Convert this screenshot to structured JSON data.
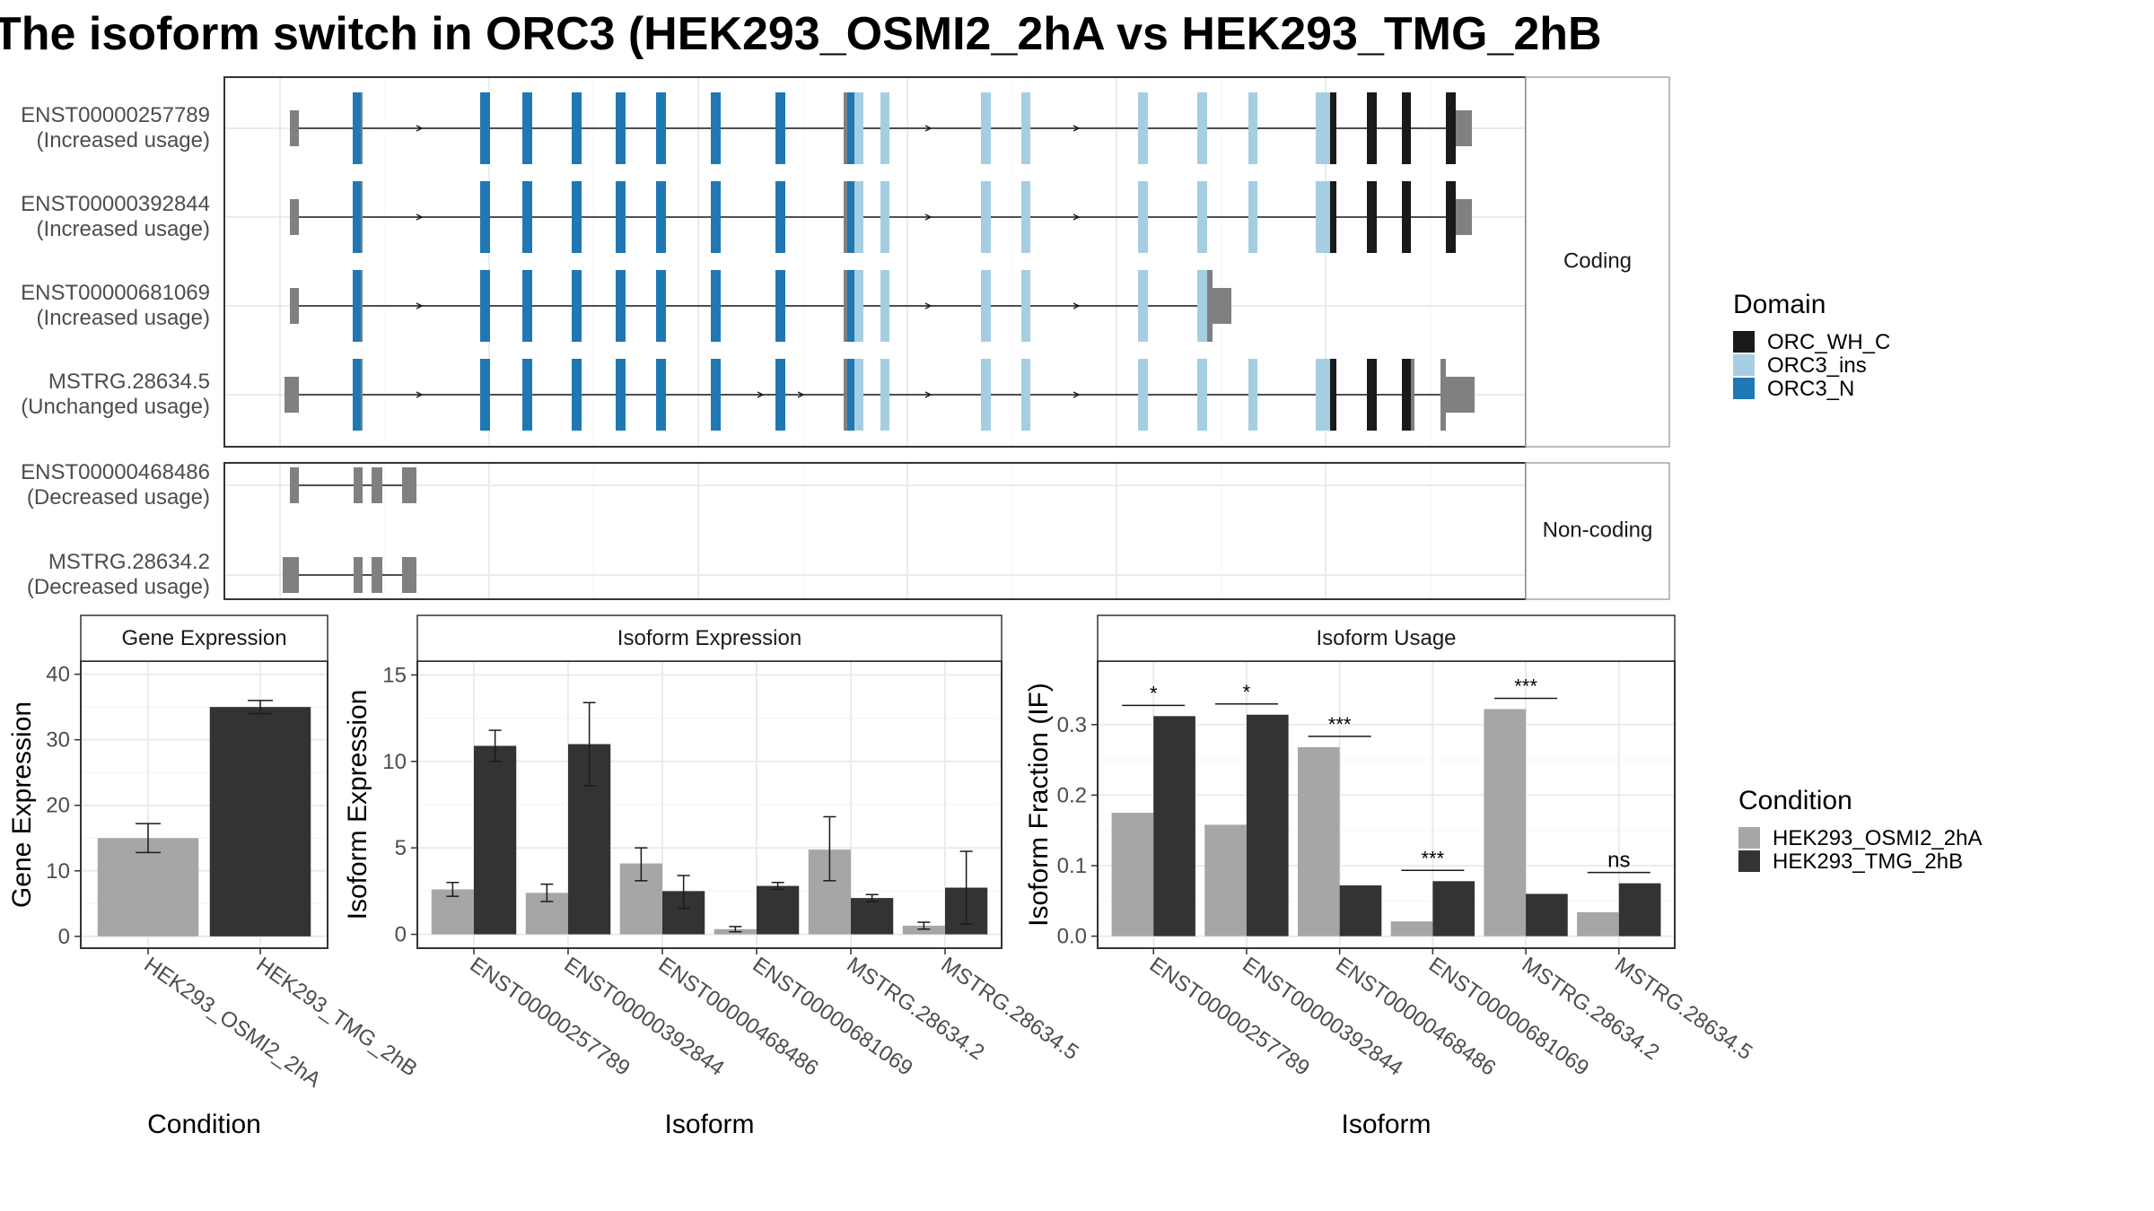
{
  "title": "The isoform switch in ORC3 (HEK293_OSMI2_2hA vs HEK293_TMG_2hB",
  "colors": {
    "orc_wh_c": "#1a1a1a",
    "orc3_ins": "#a6cee3",
    "orc3_n": "#1f78b4",
    "noncoding_exon": "#808080",
    "condition_a": "#a6a6a6",
    "condition_b": "#333333",
    "panel_border": "#333333",
    "grid": "#ebebeb",
    "strip_border": "#a6a6a6"
  },
  "structure": {
    "panels": [
      {
        "label": "Coding",
        "transcripts": [
          {
            "id": "ENST00000257789",
            "status": "(Increased usage)"
          },
          {
            "id": "ENST00000392844",
            "status": "(Increased usage)"
          },
          {
            "id": "ENST00000681069",
            "status": "(Increased usage)"
          },
          {
            "id": "MSTRG.28634.5",
            "status": "(Unchanged usage)"
          }
        ]
      },
      {
        "label": "Non-coding",
        "transcripts": [
          {
            "id": "ENST00000468486",
            "status": "(Decreased usage)"
          },
          {
            "id": "MSTRG.28634.2",
            "status": "(Decreased usage)"
          }
        ]
      }
    ],
    "domain_legend": {
      "title": "Domain",
      "items": [
        {
          "label": "ORC_WH_C",
          "color": "#1a1a1a"
        },
        {
          "label": "ORC3_ins",
          "color": "#a6cee3"
        },
        {
          "label": "ORC3_N",
          "color": "#1f78b4"
        }
      ]
    }
  },
  "condition_legend": {
    "title": "Condition",
    "items": [
      {
        "label": "HEK293_OSMI2_2hA",
        "color": "#a6a6a6"
      },
      {
        "label": "HEK293_TMG_2hB",
        "color": "#333333"
      }
    ]
  },
  "chart_data": [
    {
      "type": "bar",
      "title": "Gene Expression",
      "xlabel": "Condition",
      "ylabel": "Gene Expression",
      "categories": [
        "HEK293_OSMI2_2hA",
        "HEK293_TMG_2hB"
      ],
      "values": [
        15.0,
        35.0
      ],
      "error": [
        [
          12.8,
          17.2
        ],
        [
          34.0,
          36.0
        ]
      ],
      "ylim": [
        -1.8,
        42
      ],
      "yticks": [
        0,
        10,
        20,
        30,
        40
      ]
    },
    {
      "type": "bar",
      "title": "Isoform Expression",
      "xlabel": "Isoform",
      "ylabel": "Isoform Expression",
      "categories": [
        "ENST00000257789",
        "ENST00000392844",
        "ENST00000468486",
        "ENST00000681069",
        "MSTRG.28634.2",
        "MSTRG.28634.5"
      ],
      "series": [
        {
          "name": "HEK293_OSMI2_2hA",
          "values": [
            2.6,
            2.4,
            4.1,
            0.3,
            4.9,
            0.5
          ],
          "error": [
            [
              2.2,
              3.0
            ],
            [
              1.9,
              2.9
            ],
            [
              3.1,
              5.0
            ],
            [
              0.15,
              0.45
            ],
            [
              3.1,
              6.8
            ],
            [
              0.3,
              0.7
            ]
          ]
        },
        {
          "name": "HEK293_TMG_2hB",
          "values": [
            10.9,
            11.0,
            2.5,
            2.8,
            2.1,
            2.7
          ],
          "error": [
            [
              10.0,
              11.8
            ],
            [
              8.6,
              13.4
            ],
            [
              1.5,
              3.4
            ],
            [
              2.6,
              3.0
            ],
            [
              1.9,
              2.3
            ],
            [
              0.6,
              4.8
            ]
          ]
        }
      ],
      "ylim": [
        -0.8,
        15.8
      ],
      "yticks": [
        0,
        5,
        10,
        15
      ]
    },
    {
      "type": "bar",
      "title": "Isoform Usage",
      "xlabel": "Isoform",
      "ylabel": "Isoform Fraction (IF)",
      "categories": [
        "ENST00000257789",
        "ENST00000392844",
        "ENST00000468486",
        "ENST00000681069",
        "MSTRG.28634.2",
        "MSTRG.28634.5"
      ],
      "series": [
        {
          "name": "HEK293_OSMI2_2hA",
          "values": [
            0.175,
            0.158,
            0.268,
            0.021,
            0.322,
            0.034
          ]
        },
        {
          "name": "HEK293_TMG_2hB",
          "values": [
            0.312,
            0.314,
            0.072,
            0.078,
            0.06,
            0.075
          ]
        }
      ],
      "significance": [
        "*",
        "*",
        "***",
        "***",
        "***",
        "ns"
      ],
      "ylim": [
        -0.017,
        0.39
      ],
      "yticks": [
        0.0,
        0.1,
        0.2,
        0.3
      ],
      "ytick_labels": [
        "0.0",
        "0.1",
        "0.2",
        "0.3"
      ]
    }
  ]
}
